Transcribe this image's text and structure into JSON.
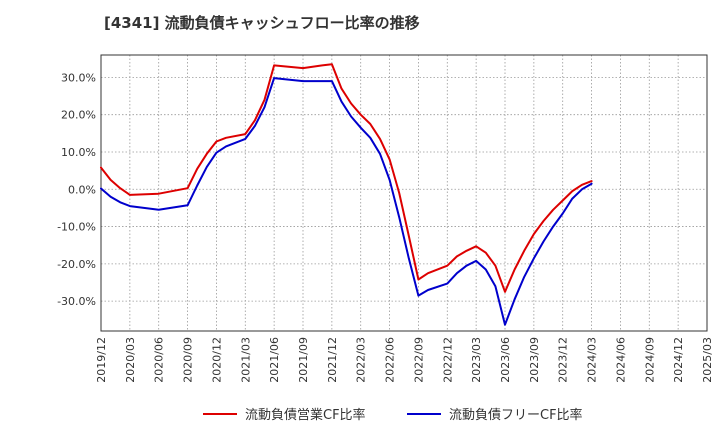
{
  "chart_data": {
    "type": "line",
    "title": "[4341]  流動負債キャッシュフロー比率の推移",
    "x": [
      "2019/12",
      "2020/03",
      "2020/06",
      "2020/09",
      "2020/12",
      "2021/03",
      "2021/06",
      "2021/09",
      "2021/12",
      "2022/03",
      "2022/06",
      "2022/09",
      "2022/12",
      "2023/03",
      "2023/06",
      "2023/09",
      "2023/12",
      "2024/03",
      "2024/06",
      "2024/09",
      "2024/12",
      "2025/03"
    ],
    "series": [
      {
        "name": "流動負債営業CF比率",
        "color": "#dd0000",
        "points": [
          [
            "2019/12",
            5.8
          ],
          [
            "2020/01",
            2.5
          ],
          [
            "2020/02",
            0.3
          ],
          [
            "2020/03",
            -1.5
          ],
          [
            "2020/06",
            -1.2
          ],
          [
            "2020/09",
            0.3
          ],
          [
            "2020/10",
            5.5
          ],
          [
            "2020/11",
            9.5
          ],
          [
            "2020/12",
            12.8
          ],
          [
            "2021/01",
            13.8
          ],
          [
            "2021/03",
            14.8
          ],
          [
            "2021/04",
            18.5
          ],
          [
            "2021/05",
            24.0
          ],
          [
            "2021/06",
            33.2
          ],
          [
            "2021/09",
            32.5
          ],
          [
            "2021/11",
            33.2
          ],
          [
            "2021/12",
            33.5
          ],
          [
            "2022/01",
            27.0
          ],
          [
            "2022/02",
            23.0
          ],
          [
            "2022/03",
            20.0
          ],
          [
            "2022/04",
            17.5
          ],
          [
            "2022/05",
            13.5
          ],
          [
            "2022/06",
            8.0
          ],
          [
            "2022/07",
            -1.0
          ],
          [
            "2022/08",
            -12.5
          ],
          [
            "2022/09",
            -24.2
          ],
          [
            "2022/10",
            -22.5
          ],
          [
            "2022/12",
            -20.5
          ],
          [
            "2023/01",
            -18.0
          ],
          [
            "2023/02",
            -16.5
          ],
          [
            "2023/03",
            -15.3
          ],
          [
            "2023/04",
            -17.0
          ],
          [
            "2023/05",
            -20.5
          ],
          [
            "2023/06",
            -27.5
          ],
          [
            "2023/07",
            -21.5
          ],
          [
            "2023/08",
            -16.5
          ],
          [
            "2023/09",
            -12.0
          ],
          [
            "2023/10",
            -8.5
          ],
          [
            "2023/11",
            -5.5
          ],
          [
            "2023/12",
            -3.0
          ],
          [
            "2024/01",
            -0.5
          ],
          [
            "2024/02",
            1.2
          ],
          [
            "2024/03",
            2.2
          ]
        ]
      },
      {
        "name": "流動負債フリーCF比率",
        "color": "#0000cc",
        "points": [
          [
            "2019/12",
            0.2
          ],
          [
            "2020/01",
            -2.0
          ],
          [
            "2020/02",
            -3.5
          ],
          [
            "2020/03",
            -4.5
          ],
          [
            "2020/06",
            -5.5
          ],
          [
            "2020/09",
            -4.3
          ],
          [
            "2020/10",
            1.0
          ],
          [
            "2020/11",
            6.0
          ],
          [
            "2020/12",
            9.8
          ],
          [
            "2021/01",
            11.5
          ],
          [
            "2021/03",
            13.5
          ],
          [
            "2021/04",
            17.0
          ],
          [
            "2021/05",
            22.0
          ],
          [
            "2021/06",
            29.8
          ],
          [
            "2021/09",
            29.0
          ],
          [
            "2021/12",
            29.0
          ],
          [
            "2022/01",
            23.5
          ],
          [
            "2022/02",
            19.5
          ],
          [
            "2022/03",
            16.5
          ],
          [
            "2022/04",
            13.8
          ],
          [
            "2022/05",
            9.5
          ],
          [
            "2022/06",
            2.5
          ],
          [
            "2022/07",
            -7.5
          ],
          [
            "2022/08",
            -18.5
          ],
          [
            "2022/09",
            -28.5
          ],
          [
            "2022/10",
            -27.0
          ],
          [
            "2022/12",
            -25.3
          ],
          [
            "2023/01",
            -22.5
          ],
          [
            "2023/02",
            -20.5
          ],
          [
            "2023/03",
            -19.2
          ],
          [
            "2023/04",
            -21.5
          ],
          [
            "2023/05",
            -26.0
          ],
          [
            "2023/06",
            -36.3
          ],
          [
            "2023/07",
            -29.5
          ],
          [
            "2023/08",
            -23.5
          ],
          [
            "2023/09",
            -18.5
          ],
          [
            "2023/10",
            -14.0
          ],
          [
            "2023/11",
            -10.0
          ],
          [
            "2023/12",
            -6.5
          ],
          [
            "2024/01",
            -2.5
          ],
          [
            "2024/02",
            0.0
          ],
          [
            "2024/03",
            1.5
          ]
        ]
      }
    ],
    "y_ticks": [
      -30,
      -20,
      -10,
      0,
      10,
      20,
      30
    ],
    "y_tick_labels": [
      "-30.0%",
      "-20.0%",
      "-10.0%",
      "0.0%",
      "10.0%",
      "20.0%",
      "30.0%"
    ],
    "ylim": [
      -38,
      36
    ],
    "xlim": [
      "2019/12",
      "2025/03"
    ],
    "xlabel": "",
    "ylabel": "",
    "grid": true,
    "legend_position": "bottom-center"
  }
}
